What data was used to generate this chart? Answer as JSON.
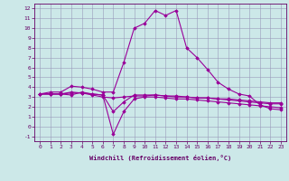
{
  "xlabel": "Windchill (Refroidissement éolien,°C)",
  "background_color": "#cce8e8",
  "grid_color": "#9999bb",
  "line_color": "#990099",
  "xlim": [
    -0.5,
    23.5
  ],
  "ylim": [
    -1.5,
    12.5
  ],
  "xticks": [
    0,
    1,
    2,
    3,
    4,
    5,
    6,
    7,
    8,
    9,
    10,
    11,
    12,
    13,
    14,
    15,
    16,
    17,
    18,
    19,
    20,
    21,
    22,
    23
  ],
  "yticks": [
    -1,
    0,
    1,
    2,
    3,
    4,
    5,
    6,
    7,
    8,
    9,
    10,
    11,
    12
  ],
  "series": [
    [
      3.3,
      3.5,
      3.5,
      4.1,
      4.0,
      3.8,
      3.5,
      3.5,
      6.5,
      10.0,
      10.5,
      11.8,
      11.3,
      11.8,
      8.0,
      7.0,
      5.8,
      4.5,
      3.8,
      3.3,
      3.1,
      2.2,
      1.8,
      1.7
    ],
    [
      3.3,
      3.3,
      3.3,
      3.5,
      3.4,
      3.2,
      3.0,
      2.9,
      3.0,
      3.1,
      3.1,
      3.2,
      3.1,
      3.0,
      3.0,
      2.9,
      2.9,
      2.8,
      2.8,
      2.7,
      2.6,
      2.5,
      2.4,
      2.4
    ],
    [
      3.3,
      3.3,
      3.3,
      3.4,
      3.4,
      3.3,
      3.2,
      1.5,
      2.5,
      3.2,
      3.2,
      3.2,
      3.1,
      3.1,
      3.0,
      2.9,
      2.9,
      2.8,
      2.7,
      2.6,
      2.5,
      2.4,
      2.3,
      2.3
    ],
    [
      3.3,
      3.3,
      3.3,
      3.2,
      3.5,
      3.3,
      3.2,
      -0.8,
      1.5,
      2.8,
      3.0,
      3.0,
      2.9,
      2.8,
      2.8,
      2.7,
      2.6,
      2.5,
      2.4,
      2.3,
      2.2,
      2.1,
      2.0,
      1.9
    ]
  ]
}
